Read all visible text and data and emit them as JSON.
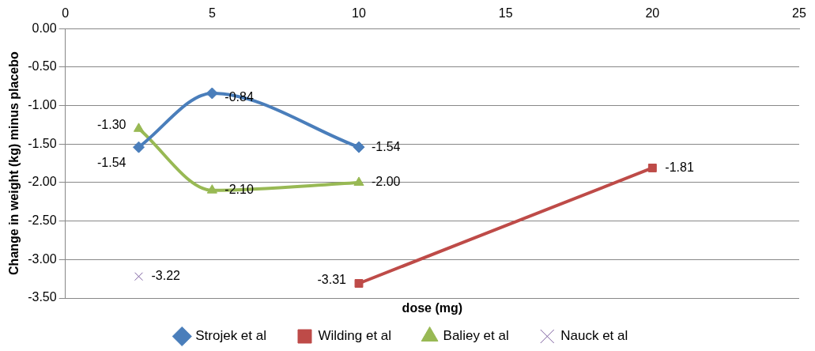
{
  "chart_data": {
    "type": "line",
    "xlabel": "dose (mg)",
    "ylabel": "Change in weight (kg) minus placebo",
    "xlim": [
      0,
      25
    ],
    "xticks": [
      0,
      5,
      10,
      15,
      20,
      25
    ],
    "ylim": [
      -3.5,
      0
    ],
    "yticks": [
      {
        "value": 0,
        "label": "0.00"
      },
      {
        "value": -0.5,
        "label": "-0.50"
      },
      {
        "value": -1,
        "label": "-1.00"
      },
      {
        "value": -1.5,
        "label": "-1.50"
      },
      {
        "value": -2,
        "label": "-2.00"
      },
      {
        "value": -2.5,
        "label": "-2.50"
      },
      {
        "value": -3,
        "label": "-3.00"
      },
      {
        "value": -3.5,
        "label": "-3.50"
      }
    ],
    "grid": "y",
    "legend": "bottom",
    "series": [
      {
        "name": "Strojek et al",
        "color": "#4a7ebb",
        "marker": "diamond",
        "x": [
          2.5,
          5,
          10
        ],
        "values": [
          -1.54,
          -0.84,
          -1.54
        ],
        "value_labels": [
          "-1.54",
          "-0.84",
          "-1.54"
        ]
      },
      {
        "name": "Wilding et al",
        "color": "#be4b48",
        "marker": "square",
        "x": [
          10,
          20
        ],
        "values": [
          -3.31,
          -1.81
        ],
        "value_labels": [
          "-3.31",
          "-1.81"
        ]
      },
      {
        "name": "Baliey et al",
        "color": "#98b954",
        "marker": "triangle",
        "x": [
          2.5,
          5,
          10
        ],
        "values": [
          -1.3,
          -2.1,
          -2.0
        ],
        "value_labels": [
          "-1.30",
          "-2.10",
          "-2.00"
        ]
      },
      {
        "name": "Nauck et al",
        "color": "#7d60a0",
        "marker": "cross",
        "x": [
          2.5
        ],
        "values": [
          -3.22
        ],
        "value_labels": [
          "-3.22"
        ]
      }
    ]
  }
}
